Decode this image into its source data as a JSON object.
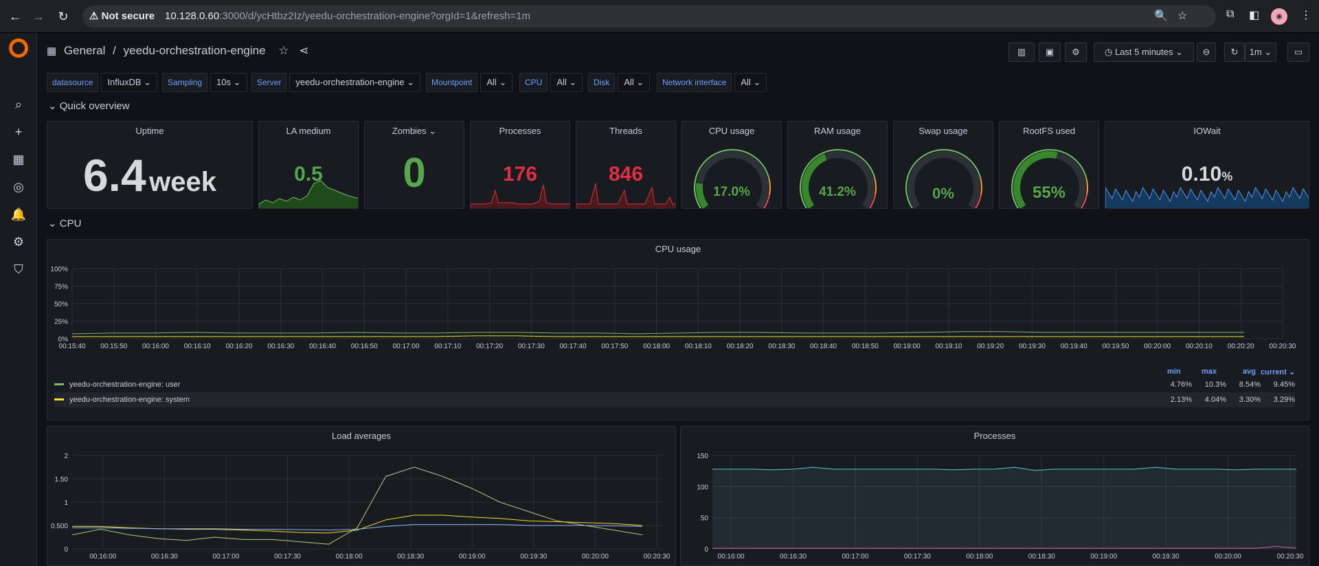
{
  "browser": {
    "not_secure": "Not secure",
    "url_host": "10.128.0.60",
    "url_rest": ":3000/d/ycHtbz2Iz/yeedu-orchestration-engine?orgId=1&refresh=1m"
  },
  "breadcrumb": {
    "folder": "General",
    "sep": "/",
    "dashboard": "yeedu-orchestration-engine"
  },
  "toolbar": {
    "time_range": "Last 5 minutes",
    "refresh": "1m"
  },
  "variables": [
    {
      "label": "datasource",
      "value": "InfluxDB"
    },
    {
      "label": "Sampling",
      "value": "10s"
    },
    {
      "label": "Server",
      "value": "yeedu-orchestration-engine"
    },
    {
      "label": "Mountpoint",
      "value": "All"
    },
    {
      "label": "CPU",
      "value": "All"
    },
    {
      "label": "Disk",
      "value": "All"
    },
    {
      "label": "Network interface",
      "value": "All"
    }
  ],
  "rows": {
    "quick": "Quick overview",
    "cpu": "CPU"
  },
  "stats": {
    "uptime": {
      "title": "Uptime",
      "value": "6.4",
      "unit": "week"
    },
    "la": {
      "title": "LA medium",
      "value": "0.5"
    },
    "zombies": {
      "title": "Zombies",
      "value": "0"
    },
    "processes": {
      "title": "Processes",
      "value": "176"
    },
    "threads": {
      "title": "Threads",
      "value": "846"
    },
    "cpu": {
      "title": "CPU usage",
      "value": "17.0%",
      "level": 0.17
    },
    "ram": {
      "title": "RAM usage",
      "value": "41.2%",
      "level": 0.412
    },
    "swap": {
      "title": "Swap usage",
      "value": "0%",
      "level": 0
    },
    "rootfs": {
      "title": "RootFS used",
      "value": "55%",
      "level": 0.55
    },
    "iowait": {
      "title": "IOWait",
      "value": "0.10",
      "unit": "%"
    }
  },
  "cpu_panel": {
    "title": "CPU usage",
    "yticks": [
      "100%",
      "75%",
      "50%",
      "25%",
      "0%"
    ],
    "xticks": [
      "00:15:40",
      "00:15:50",
      "00:16:00",
      "00:16:10",
      "00:16:20",
      "00:16:30",
      "00:16:40",
      "00:16:50",
      "00:17:00",
      "00:17:10",
      "00:17:20",
      "00:17:30",
      "00:17:40",
      "00:17:50",
      "00:18:00",
      "00:18:10",
      "00:18:20",
      "00:18:30",
      "00:18:40",
      "00:18:50",
      "00:19:00",
      "00:19:10",
      "00:19:20",
      "00:19:30",
      "00:19:40",
      "00:19:50",
      "00:20:00",
      "00:20:10",
      "00:20:20",
      "00:20:30"
    ],
    "legend_headers": [
      "min",
      "max",
      "avg",
      "current"
    ],
    "legend": [
      {
        "name": "yeedu-orchestration-engine: user",
        "color": "#73bf69",
        "min": "4.76%",
        "max": "10.3%",
        "avg": "8.54%",
        "current": "9.45%"
      },
      {
        "name": "yeedu-orchestration-engine: system",
        "color": "#fade2a",
        "min": "2.13%",
        "max": "4.04%",
        "avg": "3.30%",
        "current": "3.29%"
      }
    ]
  },
  "load_panel": {
    "title": "Load averages",
    "yticks": [
      "2",
      "1.50",
      "1",
      "0.500",
      "0"
    ],
    "xticks": [
      "00:16:00",
      "00:16:30",
      "00:17:00",
      "00:17:30",
      "00:18:00",
      "00:18:30",
      "00:19:00",
      "00:19:30",
      "00:20:00",
      "00:20:30"
    ]
  },
  "proc_panel": {
    "title": "Processes",
    "yticks": [
      "150",
      "100",
      "50",
      "0"
    ],
    "xticks": [
      "00:16:00",
      "00:16:30",
      "00:17:00",
      "00:17:30",
      "00:18:00",
      "00:18:30",
      "00:19:00",
      "00:19:30",
      "00:20:00",
      "00:20:30"
    ]
  },
  "chart_data": [
    {
      "type": "line",
      "title": "CPU usage",
      "ylim": [
        0,
        100
      ],
      "series": [
        {
          "name": "yeedu-orchestration-engine: user",
          "values": [
            7,
            8,
            8,
            9,
            8,
            8,
            8,
            9,
            8,
            8,
            9,
            9,
            8,
            8,
            7,
            8,
            9,
            9,
            8,
            8,
            8,
            9,
            10,
            10,
            9,
            9,
            9,
            9,
            9,
            9
          ]
        },
        {
          "name": "yeedu-orchestration-engine: system",
          "values": [
            3,
            3,
            3,
            3,
            3,
            3,
            3,
            3,
            3,
            3,
            4,
            4,
            3,
            3,
            3,
            3,
            3,
            3,
            3,
            3,
            3,
            3,
            3,
            3,
            3,
            3,
            3,
            3,
            3,
            3
          ]
        }
      ]
    },
    {
      "type": "line",
      "title": "Load averages",
      "ylim": [
        0,
        2
      ],
      "series": [
        {
          "values": [
            0.3,
            0.42,
            0.3,
            0.22,
            0.18,
            0.25,
            0.2,
            0.2,
            0.15,
            0.1,
            0.45,
            1.55,
            1.75,
            1.55,
            1.3,
            1.0,
            0.8,
            0.6,
            0.5,
            0.4,
            0.3
          ]
        },
        {
          "values": [
            0.48,
            0.48,
            0.45,
            0.43,
            0.42,
            0.42,
            0.4,
            0.38,
            0.35,
            0.34,
            0.4,
            0.62,
            0.72,
            0.72,
            0.68,
            0.65,
            0.6,
            0.58,
            0.56,
            0.54,
            0.5
          ]
        },
        {
          "values": [
            0.45,
            0.45,
            0.44,
            0.43,
            0.43,
            0.43,
            0.42,
            0.42,
            0.41,
            0.4,
            0.42,
            0.48,
            0.52,
            0.52,
            0.52,
            0.52,
            0.5,
            0.5,
            0.5,
            0.49,
            0.48
          ]
        }
      ]
    },
    {
      "type": "area",
      "title": "Processes",
      "ylim": [
        0,
        150
      ],
      "series": [
        {
          "values": [
            128,
            128,
            128,
            127,
            128,
            131,
            128,
            128,
            128,
            128,
            128,
            128,
            127,
            128,
            128,
            131,
            126,
            128,
            128,
            128,
            128,
            128,
            131,
            128,
            128,
            128,
            127,
            128,
            128,
            128
          ]
        },
        {
          "values": [
            1,
            1,
            1,
            1,
            1,
            1,
            1,
            1,
            1,
            1,
            1,
            1,
            1,
            1,
            1,
            1,
            1,
            1,
            1,
            1,
            1,
            1,
            1,
            1,
            1,
            1,
            1,
            1,
            4,
            1
          ]
        }
      ]
    }
  ]
}
